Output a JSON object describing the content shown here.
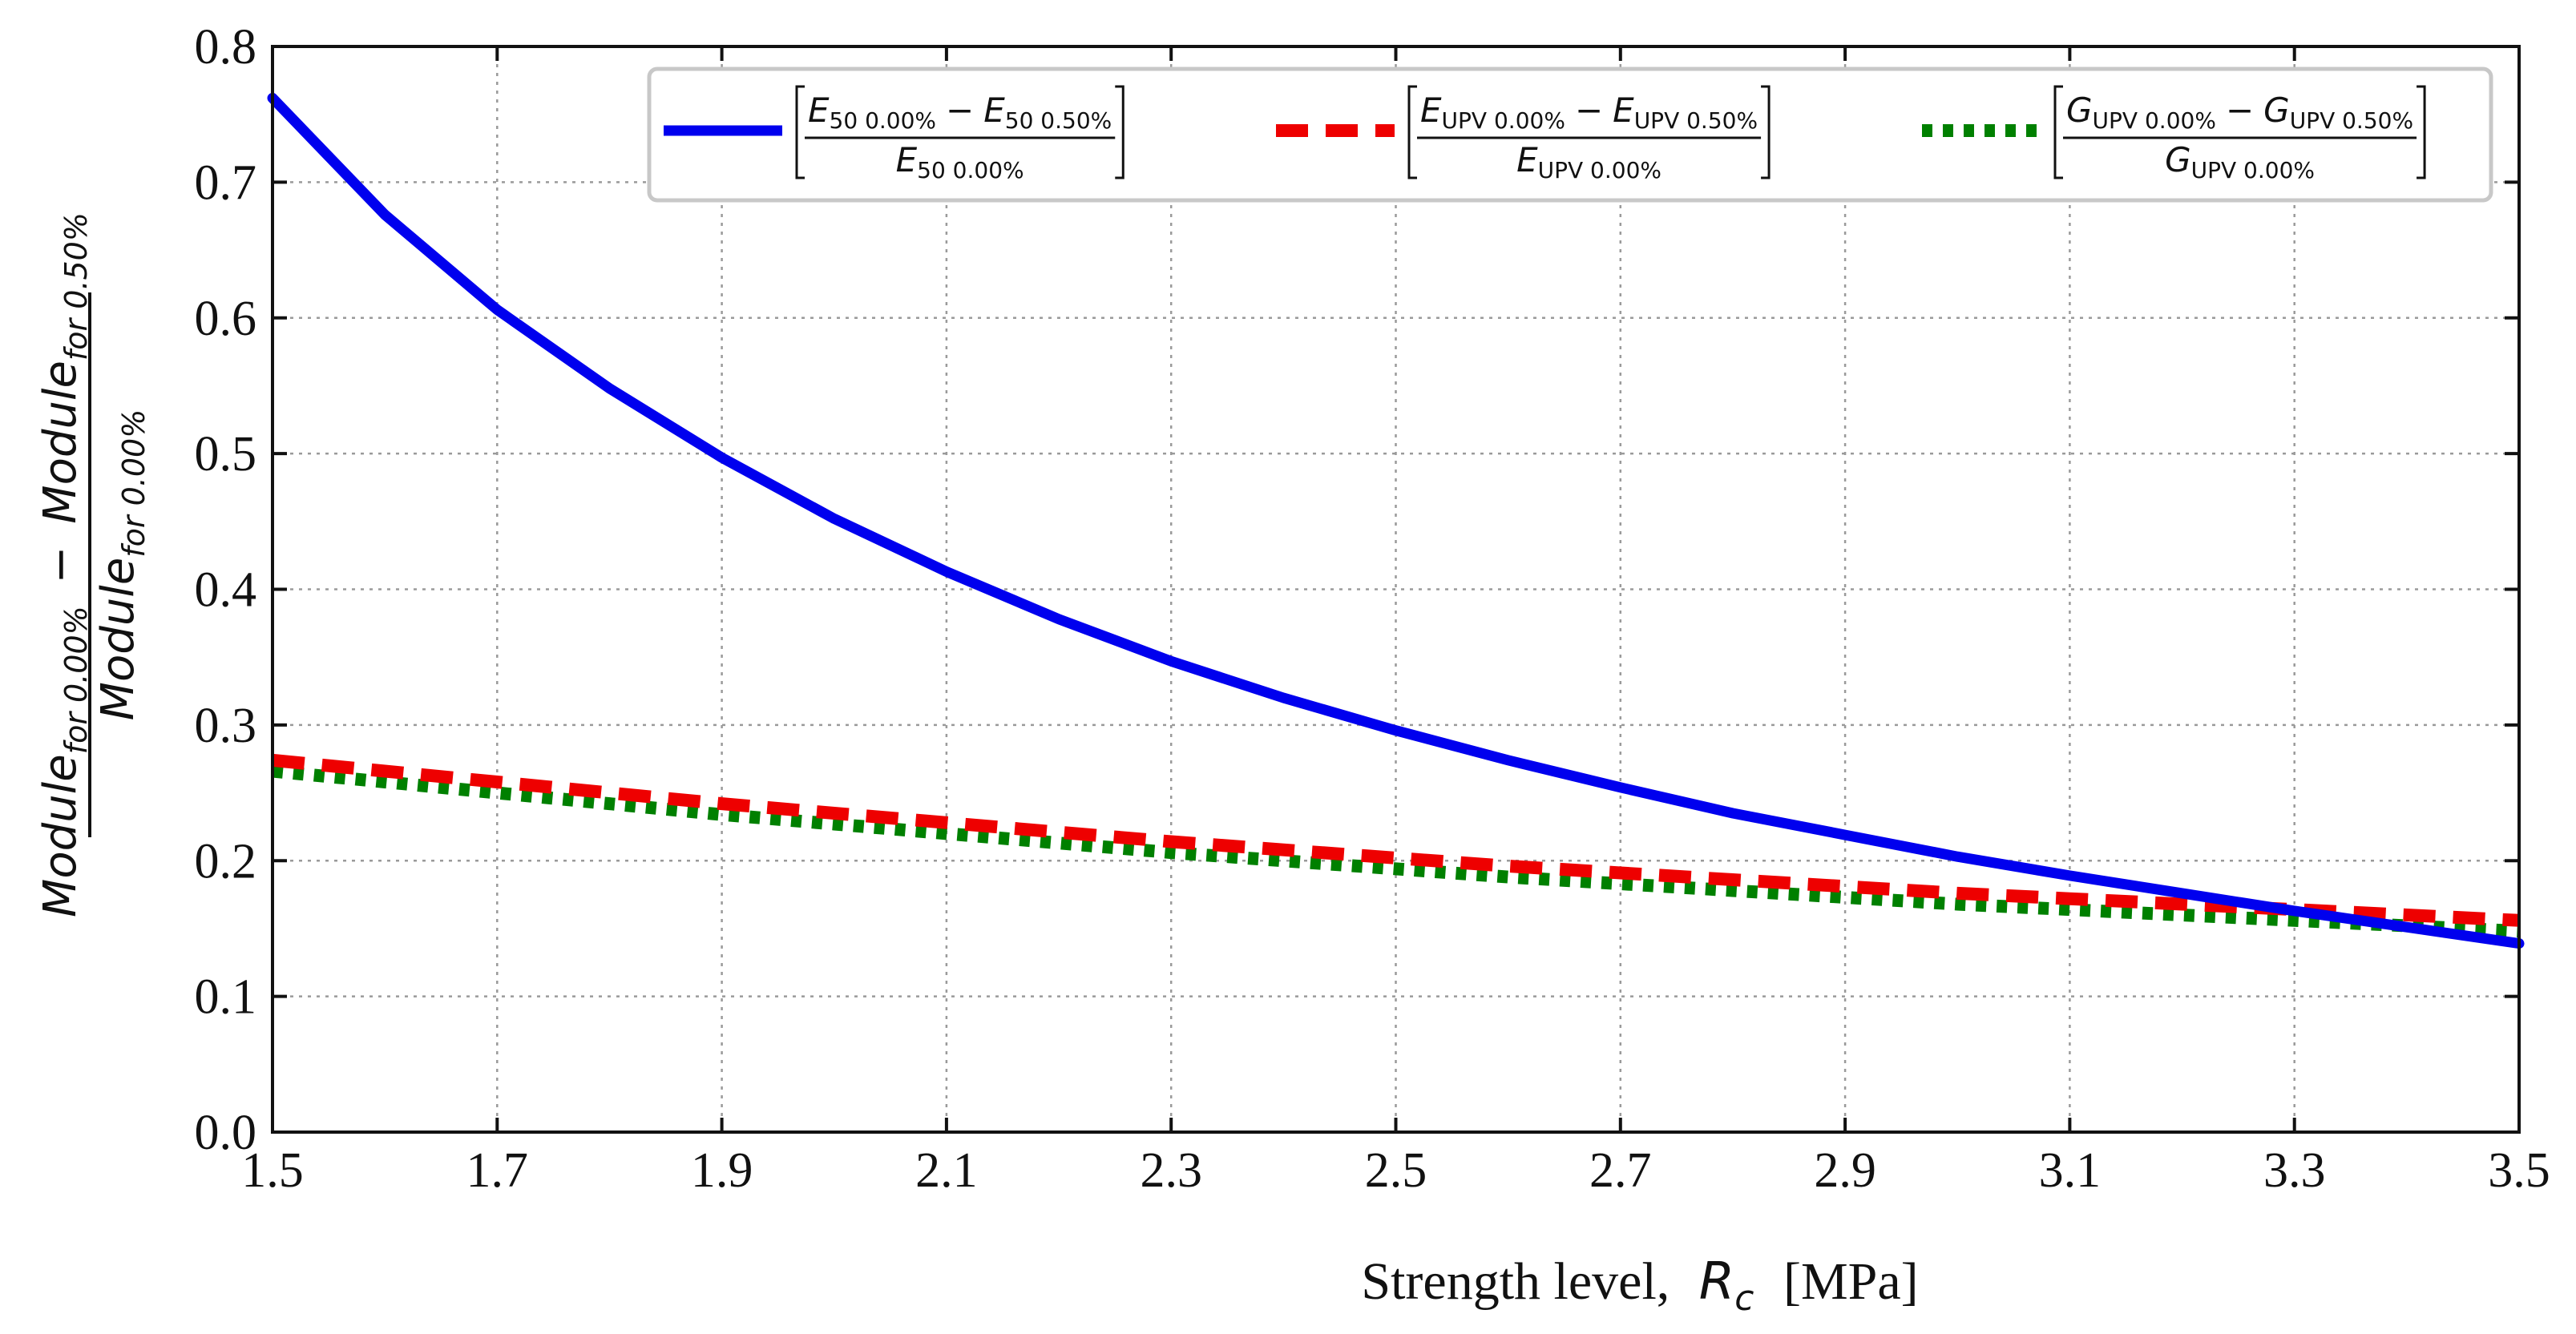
{
  "chart_data": {
    "type": "line",
    "xlabel": {
      "text": "Strength level,",
      "symbol": "R",
      "symbol_sub": "c",
      "unit": "[MPa]"
    },
    "ylabel": {
      "numerator": {
        "term1": "Module",
        "sub1": "for 0.00%",
        "minus": "−",
        "term2": "Module",
        "sub2": "for 0.50%"
      },
      "denominator": {
        "term": "Module",
        "sub": "for 0.00%"
      }
    },
    "xlim": [
      1.5,
      3.5
    ],
    "ylim": [
      0.0,
      0.8
    ],
    "xticks": [
      "1.5",
      "1.7",
      "1.9",
      "2.1",
      "2.3",
      "2.5",
      "2.7",
      "2.9",
      "3.1",
      "3.3",
      "3.5"
    ],
    "yticks": [
      "0.0",
      "0.1",
      "0.2",
      "0.3",
      "0.4",
      "0.5",
      "0.6",
      "0.7",
      "0.8"
    ],
    "grid": true,
    "legend_position": "top-right",
    "x": [
      1.5,
      1.6,
      1.7,
      1.8,
      1.9,
      2.0,
      2.1,
      2.2,
      2.3,
      2.4,
      2.5,
      2.6,
      2.7,
      2.8,
      2.9,
      3.0,
      3.1,
      3.2,
      3.3,
      3.4,
      3.5
    ],
    "series": [
      {
        "name": "E50",
        "color": "#0000ee",
        "style": "solid",
        "legend": {
          "A": "E",
          "Asub": "50 0.00%",
          "B": "E",
          "Bsub": "50 0.50%",
          "C": "E",
          "Csub": "50 0.00%"
        },
        "values": [
          0.762,
          0.676,
          0.606,
          0.548,
          0.497,
          0.452,
          0.413,
          0.378,
          0.347,
          0.32,
          0.296,
          0.274,
          0.254,
          0.235,
          0.219,
          0.203,
          0.189,
          0.176,
          0.163,
          0.151,
          0.139
        ]
      },
      {
        "name": "EUPV",
        "color": "#ee0000",
        "style": "dashed",
        "legend": {
          "A": "E",
          "Asub": "UPV 0.00%",
          "B": "E",
          "Bsub": "UPV 0.50%",
          "C": "E",
          "Csub": "UPV 0.00%"
        },
        "values": [
          0.274,
          0.266,
          0.258,
          0.25,
          0.242,
          0.235,
          0.228,
          0.221,
          0.214,
          0.208,
          0.202,
          0.196,
          0.191,
          0.186,
          0.181,
          0.176,
          0.172,
          0.168,
          0.164,
          0.16,
          0.156
        ]
      },
      {
        "name": "GUPV",
        "color": "#008000",
        "style": "dotted",
        "legend": {
          "A": "G",
          "Asub": "UPV 0.00%",
          "B": "G",
          "Bsub": "UPV 0.50%",
          "C": "G",
          "Csub": "UPV 0.00%"
        },
        "values": [
          0.266,
          0.258,
          0.25,
          0.242,
          0.234,
          0.227,
          0.22,
          0.213,
          0.206,
          0.2,
          0.194,
          0.188,
          0.183,
          0.178,
          0.173,
          0.168,
          0.164,
          0.16,
          0.156,
          0.152,
          0.148
        ]
      }
    ]
  }
}
